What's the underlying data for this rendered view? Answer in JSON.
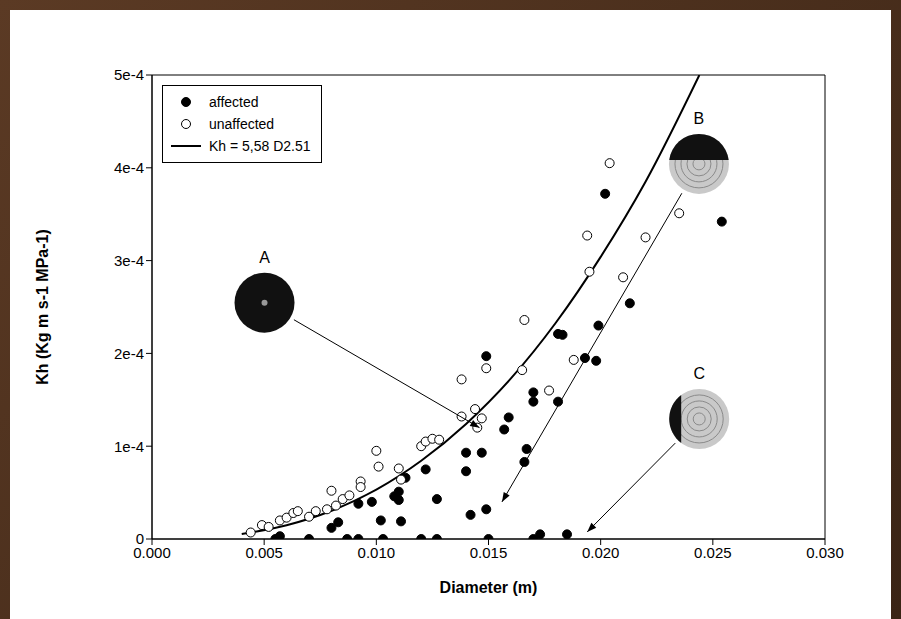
{
  "chart_data": {
    "type": "scatter",
    "xlabel": "Diameter (m)",
    "ylabel": "Kh (Kg m s-1 MPa-1)",
    "xlim": [
      0,
      0.03
    ],
    "xticks": [
      {
        "value": 0,
        "label": "0.000"
      },
      0.005,
      {
        "value": 0.01,
        "label": "0.010"
      },
      0.015,
      {
        "value": 0.02,
        "label": "0.020"
      },
      0.025,
      {
        "value": 0.03,
        "label": "0.030"
      }
    ],
    "ylim": [
      0,
      0.0005
    ],
    "yticks": [
      0,
      {
        "value": 0.0001,
        "label": "1e-4"
      },
      {
        "value": 0.0002,
        "label": "2e-4"
      },
      {
        "value": 0.0003,
        "label": "3e-4"
      },
      {
        "value": 0.0004,
        "label": "4e-4"
      },
      {
        "value": 0.0005,
        "label": "5e-4"
      }
    ],
    "grid": false,
    "legend": "upper left",
    "series": [
      {
        "name": "affected",
        "type": "scatter",
        "marker": "filled",
        "color": "#000000",
        "x": [
          0.0055,
          0.0057,
          0.007,
          0.008,
          0.0083,
          0.0087,
          0.0092,
          0.0092,
          0.0098,
          0.0102,
          0.0103,
          0.0108,
          0.011,
          0.011,
          0.0111,
          0.0113,
          0.012,
          0.0122,
          0.0127,
          0.0127,
          0.014,
          0.014,
          0.0142,
          0.0147,
          0.0149,
          0.0149,
          0.015,
          0.0157,
          0.0159,
          0.0166,
          0.0167,
          0.017,
          0.017,
          0.017,
          0.0173,
          0.0181,
          0.0181,
          0.0183,
          0.0185,
          0.0193,
          0.0198,
          0.0199,
          0.0202,
          0.0213,
          0.0254
        ],
        "values": [
          0,
          3e-06,
          0,
          1.2e-05,
          1.8e-05,
          0,
          0,
          3.8e-05,
          4e-05,
          2e-05,
          0,
          4.6e-05,
          4.2e-05,
          5.1e-05,
          1.9e-05,
          6.6e-05,
          0,
          7.5e-05,
          0,
          4.3e-05,
          9.3e-05,
          7.3e-05,
          2.6e-05,
          9.3e-05,
          3.2e-05,
          0.000197,
          0,
          0.000118,
          0.000131,
          8.3e-05,
          9.7e-05,
          0.000148,
          0.000158,
          0,
          5e-06,
          0.000221,
          0.000148,
          0.00022,
          5e-06,
          0.000195,
          0.000192,
          0.00023,
          0.000372,
          0.000254,
          0.000342
        ]
      },
      {
        "name": "unaffected",
        "type": "scatter",
        "marker": "open",
        "color": "#000000",
        "x": [
          0.0044,
          0.0049,
          0.0052,
          0.0057,
          0.006,
          0.0063,
          0.0065,
          0.007,
          0.0073,
          0.0078,
          0.008,
          0.0082,
          0.0085,
          0.0088,
          0.0093,
          0.0093,
          0.01,
          0.0101,
          0.011,
          0.0111,
          0.012,
          0.0122,
          0.0125,
          0.0128,
          0.0138,
          0.0138,
          0.0144,
          0.0145,
          0.0147,
          0.0149,
          0.0166,
          0.0165,
          0.0177,
          0.0188,
          0.0194,
          0.0195,
          0.0204,
          0.021,
          0.022,
          0.0235
        ],
        "values": [
          7e-06,
          1.5e-05,
          1.3e-05,
          2e-05,
          2.3e-05,
          2.8e-05,
          3e-05,
          2.4e-05,
          3e-05,
          3.2e-05,
          5.2e-05,
          3.6e-05,
          4.3e-05,
          4.7e-05,
          6.2e-05,
          5.6e-05,
          9.5e-05,
          7.8e-05,
          7.6e-05,
          6.4e-05,
          0.0001,
          0.000105,
          0.000108,
          0.000107,
          0.000172,
          0.000132,
          0.00014,
          0.00012,
          0.00013,
          0.000184,
          0.000236,
          0.000182,
          0.00016,
          0.000193,
          0.000327,
          0.000288,
          0.000405,
          0.000282,
          0.000325,
          0.000351
        ]
      },
      {
        "name": "Kh = 5,58 D2.51",
        "type": "line",
        "line_style": "solid",
        "color": "#000000",
        "x": [
          0.004,
          0.006,
          0.008,
          0.01,
          0.012,
          0.014,
          0.016,
          0.018,
          0.02,
          0.022,
          0.0244
        ],
        "values": [
          5.4e-06,
          1.48e-05,
          3.04e-05,
          5.32e-05,
          8.43e-05,
          0.000124,
          0.000173,
          0.000233,
          0.000304,
          0.000385,
          0.0005
        ]
      }
    ],
    "annotations": [
      {
        "text": "A",
        "x": 0.0146,
        "y": 0.00012
      },
      {
        "text": "B",
        "x": 0.0156,
        "y": 4e-05
      },
      {
        "text": "C",
        "x": 0.0194,
        "y": 7.6e-06
      }
    ]
  }
}
